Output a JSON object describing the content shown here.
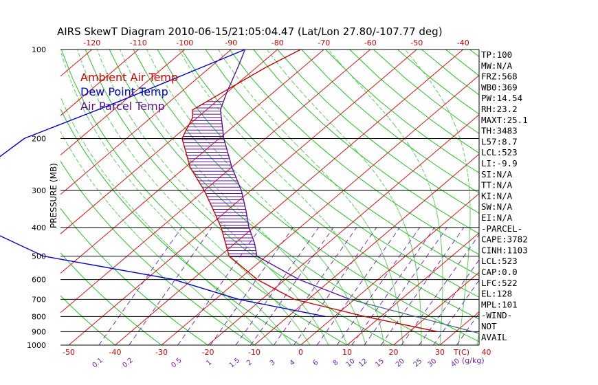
{
  "chart_data": {
    "type": "line",
    "title": "AIRS SkewT Diagram 2010-06-15/21:05:04.47 (Lat/Lon 27.80/-107.77 deg)",
    "ylabel": "PRESSURE (MB)",
    "xlabel": "T(C)",
    "mixing_ratio_unit": "(g/kg)",
    "y_scale": "log",
    "y_reversed": true,
    "ylim": [
      1000,
      100
    ],
    "xlim": [
      -50,
      40
    ],
    "grid": true,
    "legend_position": "top-left",
    "pressure_ticks": [
      100,
      200,
      300,
      400,
      500,
      600,
      700,
      800,
      900,
      1000
    ],
    "bottom_temp_ticks": [
      -50,
      -40,
      -30,
      -20,
      -10,
      0,
      10,
      20,
      30,
      40
    ],
    "top_temp_ticks": [
      -120,
      -110,
      -100,
      -90,
      -80,
      -70,
      -60,
      -50,
      -40
    ],
    "mixing_ratio_ticks": [
      {
        "label": "0.1",
        "t": -43.5
      },
      {
        "label": "0.2",
        "t": -37
      },
      {
        "label": "0.5",
        "t": -26.5
      },
      {
        "label": "1",
        "t": -19.5
      },
      {
        "label": "1.5",
        "t": -14
      },
      {
        "label": "2",
        "t": -10.8
      },
      {
        "label": "3",
        "t": -5.8
      },
      {
        "label": "4",
        "t": -1.5
      },
      {
        "label": "6",
        "t": 3.5
      },
      {
        "label": "8",
        "t": 7.8
      },
      {
        "label": "10",
        "t": 11
      },
      {
        "label": "12",
        "t": 13.7
      },
      {
        "label": "15",
        "t": 17.3
      },
      {
        "label": "20",
        "t": 21.7
      },
      {
        "label": "25",
        "t": 25.5
      },
      {
        "label": "30",
        "t": 28.6
      },
      {
        "label": "40",
        "t": 33.6
      }
    ],
    "series": [
      {
        "name": "Ambient Air Temp",
        "color": "#cc0000",
        "points": [
          [
            100,
            -75
          ],
          [
            115,
            -78
          ],
          [
            140,
            -81
          ],
          [
            160,
            -83
          ],
          [
            170,
            -81
          ],
          [
            190,
            -79
          ],
          [
            200,
            -78
          ],
          [
            250,
            -69
          ],
          [
            300,
            -60
          ],
          [
            350,
            -53
          ],
          [
            400,
            -47
          ],
          [
            500,
            -38
          ],
          [
            600,
            -26
          ],
          [
            700,
            -13
          ],
          [
            800,
            6.5
          ],
          [
            900,
            26
          ]
        ]
      },
      {
        "name": "Dew Point Temp",
        "color": "#0000cc",
        "points": [
          [
            100,
            -87
          ],
          [
            150,
            -101
          ],
          [
            200,
            -112
          ],
          [
            250,
            -113
          ],
          [
            300,
            -106
          ],
          [
            400,
            -98.5
          ],
          [
            500,
            -78
          ],
          [
            600,
            -44
          ],
          [
            700,
            -25
          ],
          [
            800,
            -2
          ]
        ]
      },
      {
        "name": "Air Parcel Temp",
        "color": "#5a0f9b",
        "points": [
          [
            100,
            -87
          ],
          [
            115,
            -84
          ],
          [
            140,
            -80
          ],
          [
            160,
            -77
          ],
          [
            200,
            -69
          ],
          [
            250,
            -60
          ],
          [
            300,
            -52
          ],
          [
            350,
            -46
          ],
          [
            400,
            -41
          ],
          [
            450,
            -36
          ],
          [
            500,
            -32
          ],
          [
            600,
            -17
          ],
          [
            700,
            -1
          ]
        ]
      }
    ],
    "indices": [
      "TP:100",
      "MW:N/A",
      "FRZ:568",
      "WB0:369",
      "PW:14.54",
      "RH:23.2",
      "MAXT:25.1",
      "TH:3483",
      "L57:8.7",
      "LCL:523",
      "LI:-9.9",
      "SI:N/A",
      "TT:N/A",
      "KI:N/A",
      "SW:N/A",
      "EI:N/A",
      "-PARCEL-",
      "CAPE:3782",
      "CINH:1103",
      "LCL:523",
      "CAP:0.0",
      "LFC:522",
      "EL:128",
      "MPL:101",
      "-WIND-",
      "NOT",
      "AVAIL"
    ]
  }
}
